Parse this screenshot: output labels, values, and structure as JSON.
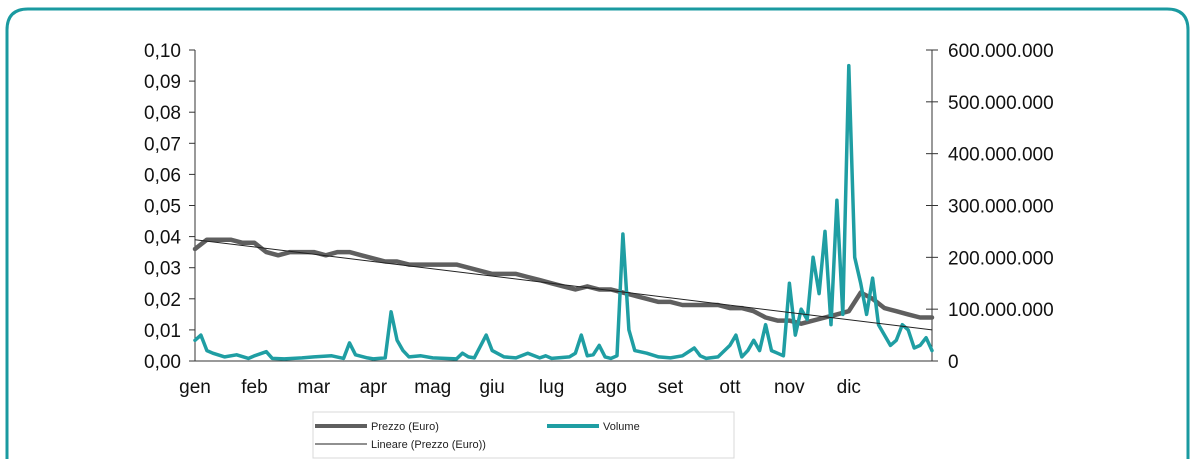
{
  "colors": {
    "frame": "#1a9aa0",
    "price": "#5f5f5f",
    "volume": "#1f9ea3",
    "trend": "#222222",
    "axis": "#333333"
  },
  "legend": {
    "price_label": "Prezzo (Euro)",
    "volume_label": "Volume",
    "trend_label": "Lineare (Prezzo (Euro))"
  },
  "chart_data": {
    "type": "line",
    "title": "",
    "xlabel": "",
    "ylabel": "",
    "categories": [
      "gen",
      "feb",
      "mar",
      "apr",
      "mag",
      "giu",
      "lug",
      "ago",
      "set",
      "ott",
      "nov",
      "dic"
    ],
    "x_range": [
      0,
      12.4
    ],
    "ylim_left": [
      0,
      0.1
    ],
    "ylim_right": [
      0,
      600000000
    ],
    "y_ticks_left": [
      "0,00",
      "0,01",
      "0,02",
      "0,03",
      "0,04",
      "0,05",
      "0,06",
      "0,07",
      "0,08",
      "0,09",
      "0,10"
    ],
    "y_ticks_right": [
      "0",
      "100.000.000",
      "200.000.000",
      "300.000.000",
      "400.000.000",
      "500.000.000",
      "600.000.000"
    ],
    "grid": false,
    "legend_position": "bottom",
    "series": [
      {
        "name": "Prezzo (Euro)",
        "axis": "left",
        "x": [
          0,
          0.2,
          0.4,
          0.6,
          0.8,
          1.0,
          1.2,
          1.4,
          1.6,
          1.8,
          2.0,
          2.2,
          2.4,
          2.6,
          2.8,
          3.0,
          3.2,
          3.4,
          3.6,
          3.8,
          4.0,
          4.2,
          4.4,
          4.6,
          4.8,
          5.0,
          5.2,
          5.4,
          5.6,
          5.8,
          6.0,
          6.2,
          6.4,
          6.6,
          6.8,
          7.0,
          7.2,
          7.4,
          7.6,
          7.8,
          8.0,
          8.2,
          8.4,
          8.6,
          8.8,
          9.0,
          9.2,
          9.4,
          9.6,
          9.8,
          10.0,
          10.2,
          10.4,
          10.6,
          10.8,
          11.0,
          11.2,
          11.4,
          11.6,
          11.8,
          12.0,
          12.2,
          12.4
        ],
        "values": [
          0.036,
          0.039,
          0.039,
          0.039,
          0.038,
          0.038,
          0.035,
          0.034,
          0.035,
          0.035,
          0.035,
          0.034,
          0.035,
          0.035,
          0.034,
          0.033,
          0.032,
          0.032,
          0.031,
          0.031,
          0.031,
          0.031,
          0.031,
          0.03,
          0.029,
          0.028,
          0.028,
          0.028,
          0.027,
          0.026,
          0.025,
          0.024,
          0.023,
          0.024,
          0.023,
          0.023,
          0.022,
          0.021,
          0.02,
          0.019,
          0.019,
          0.018,
          0.018,
          0.018,
          0.018,
          0.017,
          0.017,
          0.016,
          0.014,
          0.013,
          0.013,
          0.012,
          0.013,
          0.014,
          0.015,
          0.016,
          0.022,
          0.02,
          0.017,
          0.016,
          0.015,
          0.014,
          0.014
        ]
      },
      {
        "name": "Volume",
        "axis": "right",
        "x": [
          0,
          0.1,
          0.2,
          0.3,
          0.5,
          0.7,
          0.9,
          1.0,
          1.2,
          1.3,
          1.5,
          1.8,
          2.0,
          2.3,
          2.5,
          2.6,
          2.7,
          2.9,
          3.0,
          3.2,
          3.3,
          3.4,
          3.5,
          3.6,
          3.8,
          4.0,
          4.2,
          4.4,
          4.5,
          4.6,
          4.7,
          4.9,
          5.0,
          5.2,
          5.4,
          5.6,
          5.8,
          5.9,
          6.0,
          6.1,
          6.3,
          6.4,
          6.5,
          6.6,
          6.7,
          6.8,
          6.9,
          7.0,
          7.1,
          7.2,
          7.3,
          7.4,
          7.6,
          7.8,
          8.0,
          8.2,
          8.4,
          8.5,
          8.6,
          8.8,
          9.0,
          9.1,
          9.2,
          9.3,
          9.4,
          9.5,
          9.6,
          9.7,
          9.8,
          9.9,
          10.0,
          10.1,
          10.2,
          10.3,
          10.4,
          10.5,
          10.6,
          10.7,
          10.8,
          10.9,
          11.0,
          11.1,
          11.2,
          11.3,
          11.4,
          11.5,
          11.6,
          11.7,
          11.8,
          11.9,
          12.0,
          12.1,
          12.2,
          12.3,
          12.4
        ],
        "values": [
          40000000,
          50000000,
          20000000,
          15000000,
          8000000,
          12000000,
          5000000,
          10000000,
          18000000,
          5000000,
          4000000,
          6000000,
          8000000,
          10000000,
          5000000,
          35000000,
          12000000,
          6000000,
          4000000,
          6000000,
          95000000,
          40000000,
          20000000,
          8000000,
          10000000,
          6000000,
          5000000,
          4000000,
          15000000,
          8000000,
          6000000,
          50000000,
          20000000,
          8000000,
          6000000,
          15000000,
          6000000,
          10000000,
          5000000,
          6000000,
          8000000,
          15000000,
          50000000,
          10000000,
          12000000,
          30000000,
          8000000,
          5000000,
          10000000,
          245000000,
          60000000,
          20000000,
          15000000,
          8000000,
          6000000,
          10000000,
          25000000,
          10000000,
          5000000,
          8000000,
          30000000,
          50000000,
          8000000,
          20000000,
          40000000,
          20000000,
          70000000,
          20000000,
          15000000,
          10000000,
          150000000,
          50000000,
          100000000,
          80000000,
          200000000,
          130000000,
          250000000,
          70000000,
          310000000,
          90000000,
          570000000,
          200000000,
          150000000,
          90000000,
          160000000,
          70000000,
          50000000,
          30000000,
          40000000,
          70000000,
          60000000,
          25000000,
          30000000,
          45000000,
          20000000
        ]
      },
      {
        "name": "Lineare (Prezzo (Euro))",
        "axis": "left",
        "x": [
          0,
          12.4
        ],
        "values": [
          0.039,
          0.01
        ]
      }
    ]
  }
}
